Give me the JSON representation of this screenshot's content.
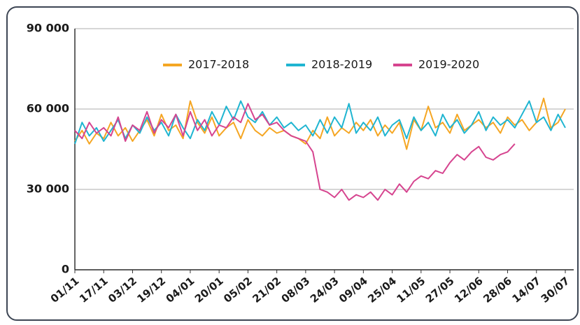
{
  "chart_data": {
    "type": "line",
    "categories": [
      "01/11",
      null,
      null,
      null,
      "17/11",
      null,
      null,
      null,
      "03/12",
      null,
      null,
      null,
      "19/12",
      null,
      null,
      null,
      "04/01",
      null,
      null,
      null,
      "20/01",
      null,
      null,
      null,
      "05/02",
      null,
      null,
      null,
      "21/02",
      null,
      null,
      null,
      "08/03",
      null,
      null,
      null,
      "24/03",
      null,
      null,
      null,
      "09/04",
      null,
      null,
      null,
      "25/04",
      null,
      null,
      null,
      "11/05",
      null,
      null,
      null,
      "27/05",
      null,
      null,
      null,
      "12/06",
      null,
      null,
      null,
      "28/06",
      null,
      null,
      null,
      "14/07",
      null,
      null,
      null,
      "30/07"
    ],
    "series": [
      {
        "name": "2017-2018",
        "color": "#f5a623",
        "values": [
          48000,
          52000,
          47000,
          51000,
          49000,
          55000,
          50000,
          53000,
          48000,
          52000,
          56000,
          50000,
          58000,
          52000,
          54000,
          49000,
          63000,
          55000,
          51000,
          57000,
          50000,
          53000,
          55000,
          49000,
          56000,
          52000,
          50000,
          53000,
          51000,
          52000,
          50000,
          49000,
          47000,
          52000,
          49000,
          57000,
          50000,
          53000,
          51000,
          55000,
          52000,
          56000,
          50000,
          54000,
          51000,
          55000,
          45000,
          56000,
          52000,
          61000,
          53000,
          55000,
          51000,
          58000,
          52000,
          54000,
          56000,
          53000,
          55000,
          51000,
          57000,
          54000,
          56000,
          52000,
          55000,
          64000,
          53000,
          55000,
          60000
        ]
      },
      {
        "name": "2018-2019",
        "color": "#1fb5d1",
        "values": [
          47000,
          55000,
          50000,
          53000,
          48000,
          52000,
          56000,
          49000,
          54000,
          51000,
          57000,
          52000,
          55000,
          50000,
          58000,
          53000,
          49000,
          56000,
          52000,
          59000,
          54000,
          61000,
          56000,
          63000,
          57000,
          55000,
          59000,
          54000,
          57000,
          53000,
          55000,
          52000,
          54000,
          50000,
          56000,
          51000,
          57000,
          53000,
          62000,
          51000,
          55000,
          52000,
          57000,
          50000,
          54000,
          56000,
          49000,
          57000,
          52000,
          55000,
          50000,
          58000,
          53000,
          56000,
          51000,
          54000,
          59000,
          52000,
          57000,
          54000,
          56000,
          53000,
          58000,
          63000,
          55000,
          57000,
          52000,
          58000,
          53000
        ]
      },
      {
        "name": "2019-2020",
        "color": "#d6448f",
        "values": [
          52000,
          49000,
          55000,
          51000,
          53000,
          50000,
          57000,
          48000,
          54000,
          52000,
          59000,
          51000,
          56000,
          53000,
          58000,
          50000,
          59000,
          52000,
          56000,
          50000,
          54000,
          53000,
          57000,
          55000,
          62000,
          56000,
          58000,
          54000,
          55000,
          52000,
          50000,
          49000,
          48000,
          44000,
          30000,
          29000,
          27000,
          30000,
          26000,
          28000,
          27000,
          29000,
          26000,
          30000,
          28000,
          32000,
          29000,
          33000,
          35000,
          34000,
          37000,
          36000,
          40000,
          43000,
          41000,
          44000,
          46000,
          42000,
          41000,
          43000,
          44000,
          47000,
          null,
          null,
          null,
          null,
          null,
          null,
          null
        ]
      }
    ],
    "ylim": [
      0,
      90000
    ],
    "yticks": [
      0,
      {
        "value": 30000,
        "label": "30 000"
      },
      {
        "value": 60000,
        "label": "60 000"
      },
      {
        "value": 90000,
        "label": "90 000"
      }
    ],
    "grid": true
  }
}
